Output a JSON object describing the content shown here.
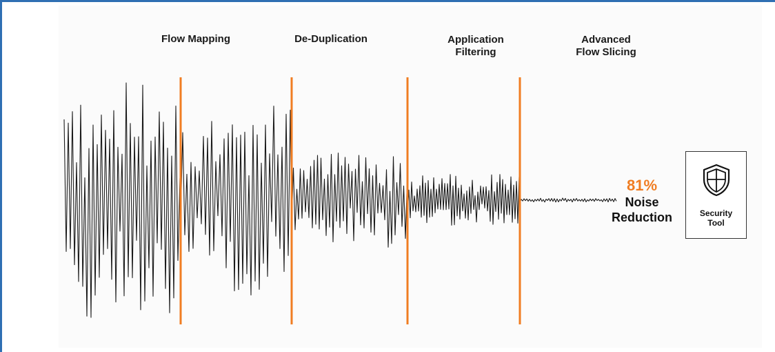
{
  "stages": [
    {
      "label": "Flow Mapping"
    },
    {
      "label": "De-Duplication"
    },
    {
      "label": "Application\nFiltering"
    },
    {
      "label": "Advanced\nFlow Slicing"
    }
  ],
  "result": {
    "percent": "81%",
    "text_line1": "Noise",
    "text_line2": "Reduction"
  },
  "security_tool": {
    "label": "Security\nTool",
    "icon": "shield-icon"
  },
  "colors": {
    "accent": "#f07d22",
    "wave": "#1a1a1a",
    "frame": "#2f6fb3"
  }
}
